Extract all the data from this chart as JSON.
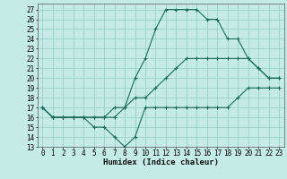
{
  "title": "",
  "xlabel": "Humidex (Indice chaleur)",
  "ylabel": "",
  "background_color": "#c5ebe6",
  "grid_color": "#9dcfca",
  "line_color": "#1a6b5a",
  "xlim": [
    -0.5,
    23.5
  ],
  "ylim": [
    13,
    27.6
  ],
  "yticks": [
    13,
    14,
    15,
    16,
    17,
    18,
    19,
    20,
    21,
    22,
    23,
    24,
    25,
    26,
    27
  ],
  "xticks": [
    0,
    1,
    2,
    3,
    4,
    5,
    6,
    7,
    8,
    9,
    10,
    11,
    12,
    13,
    14,
    15,
    16,
    17,
    18,
    19,
    20,
    21,
    22,
    23
  ],
  "hours": [
    0,
    1,
    2,
    3,
    4,
    5,
    6,
    7,
    8,
    9,
    10,
    11,
    12,
    13,
    14,
    15,
    16,
    17,
    18,
    19,
    20,
    21,
    22,
    23
  ],
  "line_max": [
    17,
    16,
    16,
    16,
    16,
    16,
    16,
    17,
    17,
    20,
    22,
    25,
    27,
    27,
    27,
    27,
    26,
    26,
    24,
    24,
    22,
    21,
    20,
    20
  ],
  "line_mean": [
    17,
    16,
    16,
    16,
    16,
    16,
    16,
    16,
    17,
    18,
    18,
    19,
    20,
    21,
    22,
    22,
    22,
    22,
    22,
    22,
    22,
    21,
    20,
    20
  ],
  "line_min": [
    17,
    16,
    16,
    16,
    16,
    15,
    15,
    14,
    13,
    14,
    17,
    17,
    17,
    17,
    17,
    17,
    17,
    17,
    17,
    18,
    19,
    19,
    19,
    19
  ],
  "tick_fontsize": 5.5,
  "xlabel_fontsize": 6.5,
  "marker_size": 3,
  "linewidth": 0.8
}
